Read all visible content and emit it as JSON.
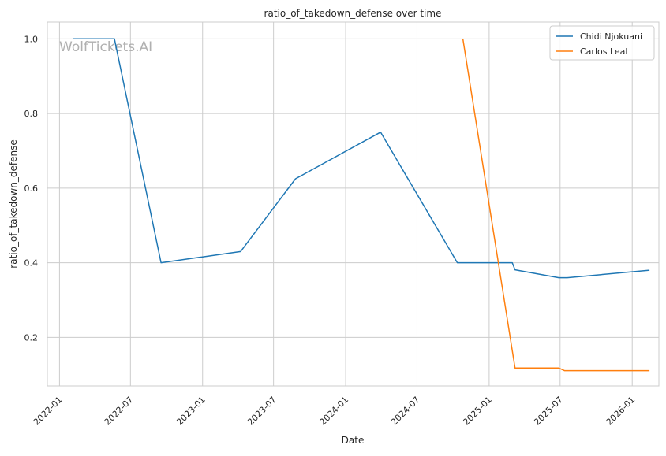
{
  "chart_data": {
    "type": "line",
    "title": "ratio_of_takedown_defense over time",
    "xlabel": "Date",
    "ylabel": "ratio_of_takedown_defense",
    "watermark": "WolfTickets.AI",
    "xlim": [
      "2021-12-01",
      "2026-03-10"
    ],
    "ylim": [
      0.07,
      1.045
    ],
    "x_ticks": [
      "2022-01",
      "2022-07",
      "2023-01",
      "2023-07",
      "2024-01",
      "2024-07",
      "2025-01",
      "2025-07",
      "2026-01"
    ],
    "y_ticks": [
      0.2,
      0.4,
      0.6,
      0.8,
      1.0
    ],
    "y_tick_labels": [
      "0.2",
      "0.4",
      "0.6",
      "0.8",
      "1.0"
    ],
    "grid": true,
    "legend_position": "top-right",
    "series": [
      {
        "name": "Chidi Njokuani",
        "color": "#1f77b4",
        "points": [
          {
            "x": "2022-02-05",
            "y": 1.0
          },
          {
            "x": "2022-05-21",
            "y": 1.0
          },
          {
            "x": "2022-09-17",
            "y": 0.4
          },
          {
            "x": "2023-04-08",
            "y": 0.43
          },
          {
            "x": "2023-08-26",
            "y": 0.625
          },
          {
            "x": "2024-03-30",
            "y": 0.75
          },
          {
            "x": "2024-10-12",
            "y": 0.4
          },
          {
            "x": "2025-03-01",
            "y": 0.4
          },
          {
            "x": "2025-03-08",
            "y": 0.381
          },
          {
            "x": "2025-06-28",
            "y": 0.36
          },
          {
            "x": "2025-07-19",
            "y": 0.36
          },
          {
            "x": "2026-02-14",
            "y": 0.38
          }
        ]
      },
      {
        "name": "Carlos Leal",
        "color": "#ff7f0e",
        "points": [
          {
            "x": "2024-10-26",
            "y": 1.0
          },
          {
            "x": "2025-03-08",
            "y": 0.118
          },
          {
            "x": "2025-06-28",
            "y": 0.118
          },
          {
            "x": "2025-07-12",
            "y": 0.111
          },
          {
            "x": "2026-02-14",
            "y": 0.111
          }
        ]
      }
    ]
  }
}
